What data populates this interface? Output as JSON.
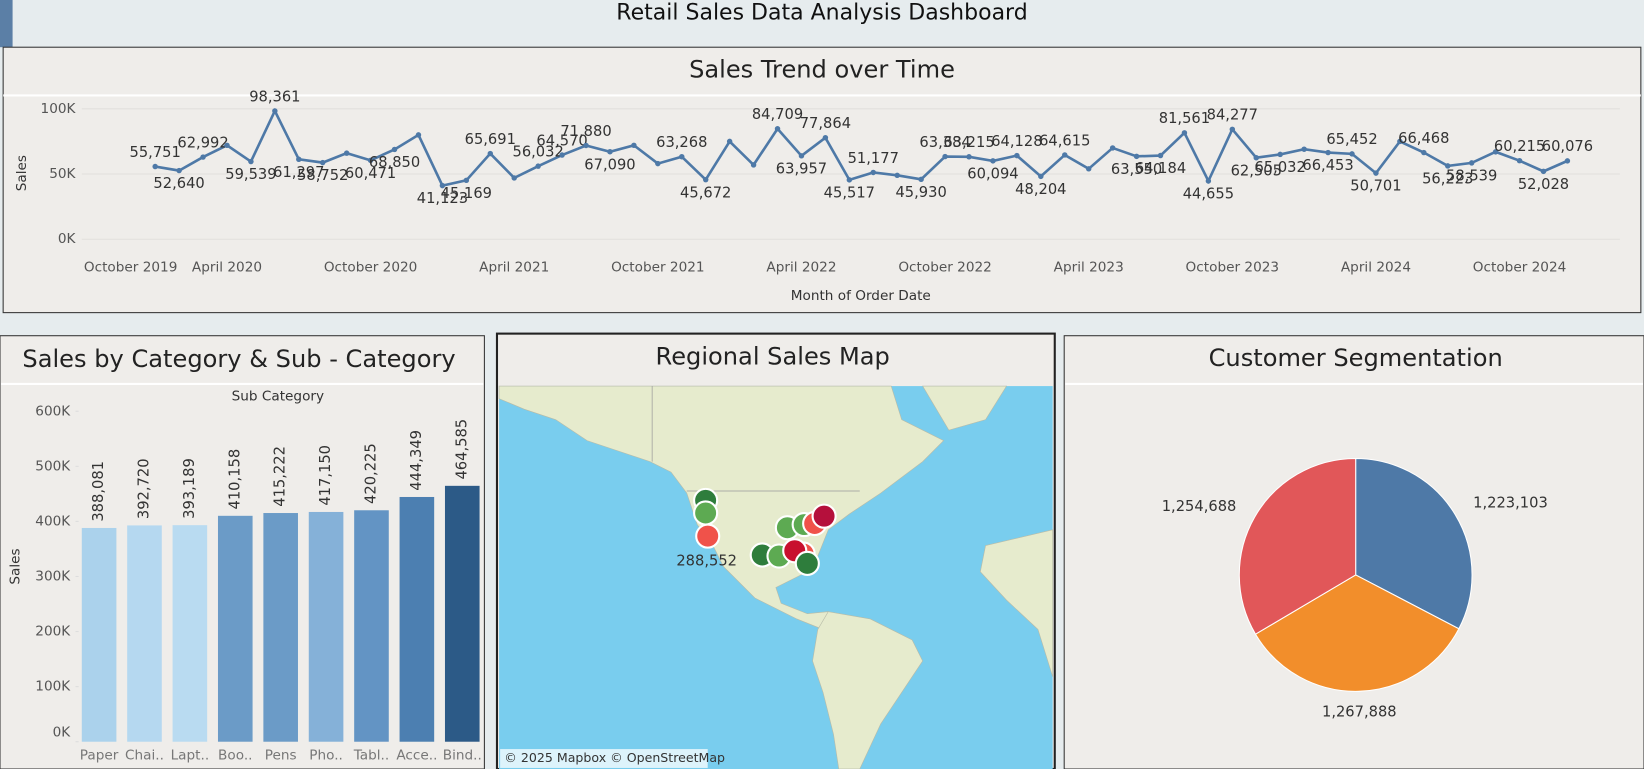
{
  "title": "Retail Sales Data Analysis Dashboard",
  "chart_data": [
    {
      "type": "line",
      "title": "Sales Trend over Time",
      "x_label": "Month of Order Date",
      "y_label": "Sales",
      "color": "#4e79a7",
      "grid": true,
      "x": [
        "2020-01",
        "2020-02",
        "2020-03",
        "2020-04",
        "2020-05",
        "2020-06",
        "2020-07",
        "2020-08",
        "2020-09",
        "2020-10",
        "2020-11",
        "2020-12",
        "2021-01",
        "2021-02",
        "2021-03",
        "2021-04",
        "2021-05",
        "2021-06",
        "2021-07",
        "2021-08",
        "2021-09",
        "2021-10",
        "2021-11",
        "2021-12",
        "2022-01",
        "2022-02",
        "2022-03",
        "2022-04",
        "2022-05",
        "2022-06",
        "2022-07",
        "2022-08",
        "2022-09",
        "2022-10",
        "2022-11",
        "2022-12",
        "2023-01",
        "2023-02",
        "2023-03",
        "2023-04",
        "2023-05",
        "2023-06",
        "2023-07",
        "2023-08",
        "2023-09",
        "2023-10",
        "2023-11",
        "2023-12",
        "2024-01",
        "2024-02",
        "2024-03",
        "2024-04",
        "2024-05",
        "2024-06",
        "2024-07",
        "2024-08",
        "2024-09",
        "2024-10",
        "2024-11",
        "2024-12"
      ],
      "values": [
        55751,
        52640,
        62992,
        72000,
        59539,
        98361,
        61297,
        58752,
        66000,
        60471,
        68850,
        80000,
        41123,
        45169,
        65691,
        47000,
        56032,
        64570,
        71880,
        67090,
        72000,
        58000,
        63268,
        45672,
        75000,
        57000,
        84709,
        63957,
        77864,
        45517,
        51177,
        49000,
        45930,
        63384,
        63215,
        60094,
        64128,
        48204,
        64615,
        54000,
        70000,
        63550,
        64184,
        81561,
        44655,
        84277,
        62505,
        65032,
        69000,
        66453,
        65452,
        50701,
        75000,
        66468,
        56223,
        58539,
        67000,
        60215,
        52028,
        60076
      ],
      "value_labels": [
        "55,751",
        "52,640",
        "62,992",
        null,
        "59,539",
        "98,361",
        "61,297",
        "58,752",
        null,
        "60,471",
        "68,850",
        null,
        "41,123",
        "45,169",
        "65,691",
        null,
        "56,032",
        "64,570",
        "71,880",
        "67,090",
        null,
        null,
        "63,268",
        "45,672",
        null,
        null,
        "84,709",
        "63,957",
        "77,864",
        "45,517",
        "51,177",
        null,
        "45,930",
        "63,384",
        "63,215",
        "60,094",
        "64,128",
        "48,204",
        "64,615",
        null,
        null,
        "63,550",
        "64,184",
        "81,561",
        "44,655",
        "84,277",
        "62,505",
        "65,032",
        null,
        "66,453",
        "65,452",
        "50,701",
        null,
        "66,468",
        "56,223",
        "58,539",
        null,
        "60,215",
        "52,028",
        "60,076"
      ],
      "xticks": [
        {
          "value": "2019-10",
          "label": "October 2019"
        },
        {
          "value": "2020-04",
          "label": "April 2020"
        },
        {
          "value": "2020-10",
          "label": "October 2020"
        },
        {
          "value": "2021-04",
          "label": "April 2021"
        },
        {
          "value": "2021-10",
          "label": "October 2021"
        },
        {
          "value": "2022-04",
          "label": "April 2022"
        },
        {
          "value": "2022-10",
          "label": "October 2022"
        },
        {
          "value": "2023-04",
          "label": "April 2023"
        },
        {
          "value": "2023-10",
          "label": "October 2023"
        },
        {
          "value": "2024-04",
          "label": "April 2024"
        },
        {
          "value": "2024-10",
          "label": "October 2024"
        }
      ],
      "ylim": [
        -8000,
        107000
      ],
      "yticks": [
        {
          "value": 0,
          "label": "0K"
        },
        {
          "value": 50000,
          "label": "50K"
        },
        {
          "value": 100000,
          "label": "100K"
        }
      ]
    },
    {
      "type": "bar",
      "title": "Sales by Category & Sub - Category",
      "column_header": "Sub Category",
      "y_label": "Sales",
      "categories": [
        "Paper",
        "Chai..",
        "Lapt..",
        "Boo..",
        "Pens",
        "Pho..",
        "Tabl..",
        "Acce..",
        "Bind.."
      ],
      "values": [
        388081,
        392720,
        393189,
        410158,
        415222,
        417150,
        420225,
        444349,
        464585
      ],
      "value_labels": [
        "388,081",
        "392,720",
        "393,189",
        "410,158",
        "415,222",
        "417,150",
        "420,225",
        "444,349",
        "464,585"
      ],
      "colors": [
        "#abd2ec",
        "#b5d8f0",
        "#b9dbf1",
        "#6b9bc7",
        "#6b9bc7",
        "#85b1d8",
        "#6394c4",
        "#4c7fb1",
        "#2c5a87"
      ],
      "ylim": [
        0,
        600000
      ],
      "yticks": [
        {
          "value": 0,
          "label": "0K"
        },
        {
          "value": 100000,
          "label": "100K"
        },
        {
          "value": 200000,
          "label": "200K"
        },
        {
          "value": 300000,
          "label": "300K"
        },
        {
          "value": 400000,
          "label": "400K"
        },
        {
          "value": 500000,
          "label": "500K"
        },
        {
          "value": 600000,
          "label": "600K"
        }
      ]
    },
    {
      "type": "map",
      "title": "Regional Sales Map",
      "values": [
        288552
      ],
      "value_labels": [
        "288,552"
      ],
      "color": "#f0524a",
      "attribution": "© 2025 Mapbox © OpenStreetMap"
    },
    {
      "type": "pie",
      "title": "Customer Segmentation",
      "values": [
        1223103,
        1267888,
        1254688
      ],
      "value_labels": [
        "1,223,103",
        "1,267,888",
        "1,254,688"
      ],
      "colors": [
        "#4e79a7",
        "#f28e2b",
        "#e15759"
      ]
    }
  ]
}
